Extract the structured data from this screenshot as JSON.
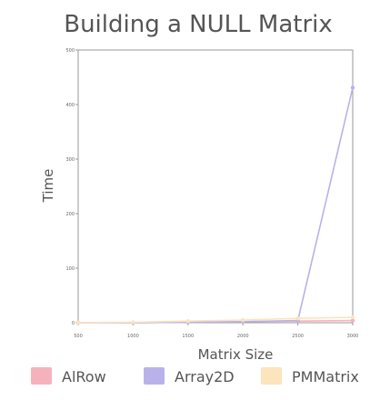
{
  "chart_data": {
    "type": "line",
    "title": "Building a NULL Matrix",
    "xlabel": "Matrix Size",
    "ylabel": "Time",
    "x": [
      500,
      1000,
      1500,
      2000,
      2500,
      3000
    ],
    "x_tick_labels": [
      "500",
      "1000",
      "1500",
      "2000",
      "2500",
      "3000"
    ],
    "xlim": [
      500,
      3000
    ],
    "y_ticks": [
      0,
      100,
      200,
      300,
      400,
      500
    ],
    "y_tick_labels": [
      "0",
      "100",
      "200",
      "300",
      "400",
      "500"
    ],
    "ylim": [
      0,
      500
    ],
    "grid": false,
    "legend_position": "bottom",
    "series": [
      {
        "name": "AlRow",
        "values": [
          0,
          0,
          1,
          2,
          3,
          4
        ],
        "color": "#f6b2bc"
      },
      {
        "name": "Array2D",
        "values": [
          0,
          0,
          1,
          2,
          4,
          431
        ],
        "color": "#b9b2ea"
      },
      {
        "name": "PMMatrix",
        "values": [
          0,
          1,
          3,
          5,
          8,
          10
        ],
        "color": "#fce4bd"
      }
    ]
  }
}
